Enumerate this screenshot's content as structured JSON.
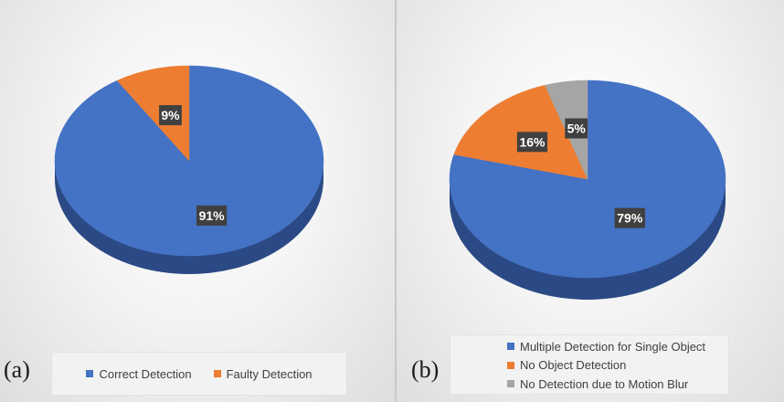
{
  "chart_data": [
    {
      "type": "pie",
      "style": "3d",
      "panel_label": "(a)",
      "slices": [
        {
          "label": "Correct Detection",
          "value": 91,
          "display": "91%",
          "color": "#4472c4",
          "side_color": "#2b4a85"
        },
        {
          "label": "Faulty Detection",
          "value": 9,
          "display": "9%",
          "color": "#ed7d31",
          "side_color": "#a8541f"
        }
      ],
      "legend_position": "bottom"
    },
    {
      "type": "pie",
      "style": "3d",
      "panel_label": "(b)",
      "slices": [
        {
          "label": "Multiple Detection for Single Object",
          "value": 79,
          "display": "79%",
          "color": "#4472c4",
          "side_color": "#2b4a85"
        },
        {
          "label": "No Object Detection",
          "value": 16,
          "display": "16%",
          "color": "#ed7d31",
          "side_color": "#a8541f"
        },
        {
          "label": "No Detection due to Motion Blur",
          "value": 5,
          "display": "5%",
          "color": "#a5a5a5",
          "side_color": "#707070"
        }
      ],
      "legend_position": "bottom"
    }
  ]
}
